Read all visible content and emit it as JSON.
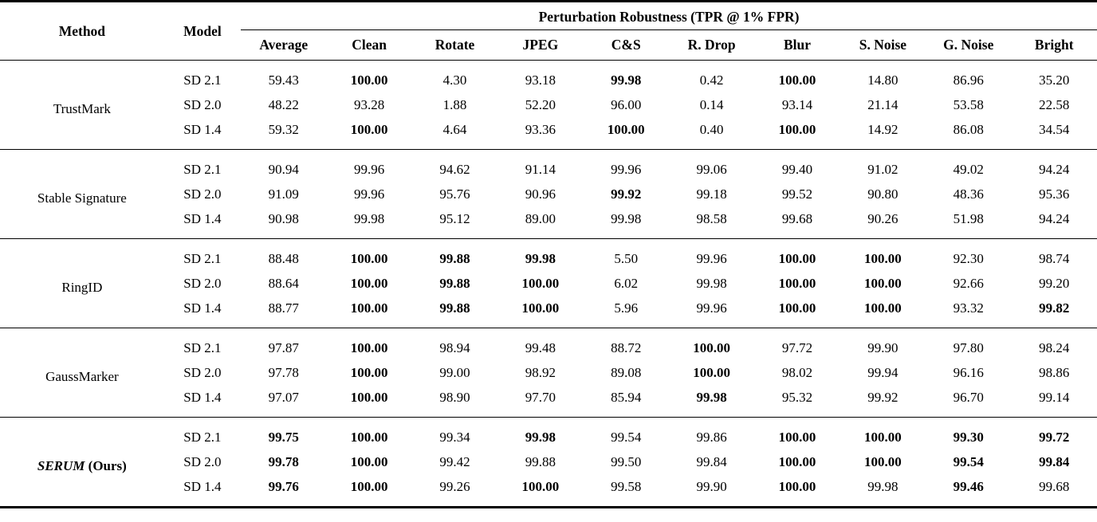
{
  "table": {
    "method_header": "Method",
    "model_header": "Model",
    "span_header": "Perturbation Robustness (TPR @ 1% FPR)",
    "data_headers": [
      "Average",
      "Clean",
      "Rotate",
      "JPEG",
      "C&S",
      "R. Drop",
      "Blur",
      "S. Noise",
      "G. Noise",
      "Bright"
    ],
    "groups": [
      {
        "method": "TrustMark",
        "rows": [
          {
            "model": "SD 2.1",
            "values": [
              "59.43",
              "100.00",
              "4.30",
              "93.18",
              "99.98",
              "0.42",
              "100.00",
              "14.80",
              "86.96",
              "35.20"
            ],
            "bold": [
              0,
              1,
              0,
              0,
              1,
              0,
              1,
              0,
              0,
              0
            ]
          },
          {
            "model": "SD 2.0",
            "values": [
              "48.22",
              "93.28",
              "1.88",
              "52.20",
              "96.00",
              "0.14",
              "93.14",
              "21.14",
              "53.58",
              "22.58"
            ],
            "bold": [
              0,
              0,
              0,
              0,
              0,
              0,
              0,
              0,
              0,
              0
            ]
          },
          {
            "model": "SD 1.4",
            "values": [
              "59.32",
              "100.00",
              "4.64",
              "93.36",
              "100.00",
              "0.40",
              "100.00",
              "14.92",
              "86.08",
              "34.54"
            ],
            "bold": [
              0,
              1,
              0,
              0,
              1,
              0,
              1,
              0,
              0,
              0
            ]
          }
        ]
      },
      {
        "method": "Stable Signature",
        "rows": [
          {
            "model": "SD 2.1",
            "values": [
              "90.94",
              "99.96",
              "94.62",
              "91.14",
              "99.96",
              "99.06",
              "99.40",
              "91.02",
              "49.02",
              "94.24"
            ],
            "bold": [
              0,
              0,
              0,
              0,
              0,
              0,
              0,
              0,
              0,
              0
            ]
          },
          {
            "model": "SD 2.0",
            "values": [
              "91.09",
              "99.96",
              "95.76",
              "90.96",
              "99.92",
              "99.18",
              "99.52",
              "90.80",
              "48.36",
              "95.36"
            ],
            "bold": [
              0,
              0,
              0,
              0,
              1,
              0,
              0,
              0,
              0,
              0
            ]
          },
          {
            "model": "SD 1.4",
            "values": [
              "90.98",
              "99.98",
              "95.12",
              "89.00",
              "99.98",
              "98.58",
              "99.68",
              "90.26",
              "51.98",
              "94.24"
            ],
            "bold": [
              0,
              0,
              0,
              0,
              0,
              0,
              0,
              0,
              0,
              0
            ]
          }
        ]
      },
      {
        "method": "RingID",
        "rows": [
          {
            "model": "SD 2.1",
            "values": [
              "88.48",
              "100.00",
              "99.88",
              "99.98",
              "5.50",
              "99.96",
              "100.00",
              "100.00",
              "92.30",
              "98.74"
            ],
            "bold": [
              0,
              1,
              1,
              1,
              0,
              0,
              1,
              1,
              0,
              0
            ]
          },
          {
            "model": "SD 2.0",
            "values": [
              "88.64",
              "100.00",
              "99.88",
              "100.00",
              "6.02",
              "99.98",
              "100.00",
              "100.00",
              "92.66",
              "99.20"
            ],
            "bold": [
              0,
              1,
              1,
              1,
              0,
              0,
              1,
              1,
              0,
              0
            ]
          },
          {
            "model": "SD 1.4",
            "values": [
              "88.77",
              "100.00",
              "99.88",
              "100.00",
              "5.96",
              "99.96",
              "100.00",
              "100.00",
              "93.32",
              "99.82"
            ],
            "bold": [
              0,
              1,
              1,
              1,
              0,
              0,
              1,
              1,
              0,
              1
            ]
          }
        ]
      },
      {
        "method": "GaussMarker",
        "rows": [
          {
            "model": "SD 2.1",
            "values": [
              "97.87",
              "100.00",
              "98.94",
              "99.48",
              "88.72",
              "100.00",
              "97.72",
              "99.90",
              "97.80",
              "98.24"
            ],
            "bold": [
              0,
              1,
              0,
              0,
              0,
              1,
              0,
              0,
              0,
              0
            ]
          },
          {
            "model": "SD 2.0",
            "values": [
              "97.78",
              "100.00",
              "99.00",
              "98.92",
              "89.08",
              "100.00",
              "98.02",
              "99.94",
              "96.16",
              "98.86"
            ],
            "bold": [
              0,
              1,
              0,
              0,
              0,
              1,
              0,
              0,
              0,
              0
            ]
          },
          {
            "model": "SD 1.4",
            "values": [
              "97.07",
              "100.00",
              "98.90",
              "97.70",
              "85.94",
              "99.98",
              "95.32",
              "99.92",
              "96.70",
              "99.14"
            ],
            "bold": [
              0,
              1,
              0,
              0,
              0,
              1,
              0,
              0,
              0,
              0
            ]
          }
        ]
      },
      {
        "method": "SERUM (Ours)",
        "method_rich": [
          {
            "text": "SERUM",
            "style": "bi"
          },
          {
            "text": " (Ours)",
            "style": "b"
          }
        ],
        "rows": [
          {
            "model": "SD 2.1",
            "values": [
              "99.75",
              "100.00",
              "99.34",
              "99.98",
              "99.54",
              "99.86",
              "100.00",
              "100.00",
              "99.30",
              "99.72"
            ],
            "bold": [
              1,
              1,
              0,
              1,
              0,
              0,
              1,
              1,
              1,
              1
            ]
          },
          {
            "model": "SD 2.0",
            "values": [
              "99.78",
              "100.00",
              "99.42",
              "99.88",
              "99.50",
              "99.84",
              "100.00",
              "100.00",
              "99.54",
              "99.84"
            ],
            "bold": [
              1,
              1,
              0,
              0,
              0,
              0,
              1,
              1,
              1,
              1
            ]
          },
          {
            "model": "SD 1.4",
            "values": [
              "99.76",
              "100.00",
              "99.26",
              "100.00",
              "99.58",
              "99.90",
              "100.00",
              "99.98",
              "99.46",
              "99.68"
            ],
            "bold": [
              1,
              1,
              0,
              1,
              0,
              0,
              1,
              0,
              1,
              0
            ]
          }
        ]
      }
    ]
  }
}
